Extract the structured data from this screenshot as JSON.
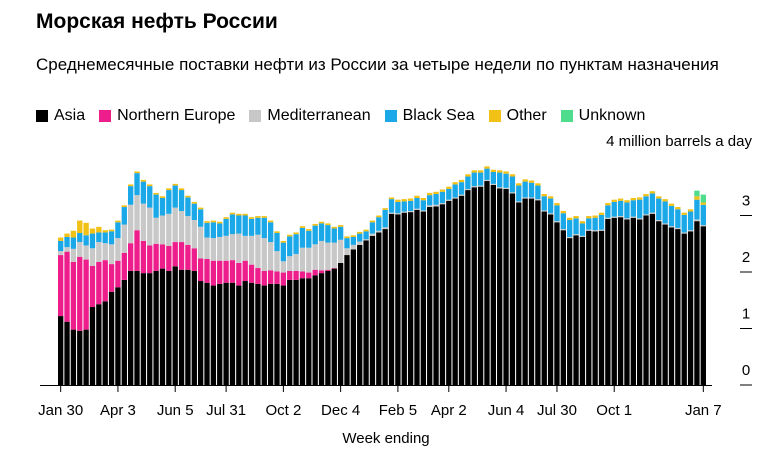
{
  "chart_data": {
    "type": "bar",
    "stacked": true,
    "title": "Морская нефть России",
    "subtitle": "Среднемесячные поставки нефти из России за четыре недели по пунктам назначения",
    "unit_label": "4 million barrels a day",
    "xlabel": "Week ending",
    "ylabel": "",
    "ylim": [
      0,
      4
    ],
    "yticks": [
      0,
      1,
      2,
      3
    ],
    "grid": false,
    "legend_position": "top-left",
    "x_tick_labels": [
      "Jan 30",
      "Apr 3",
      "Jun 5",
      "Jul 31",
      "Oct 2",
      "Dec 4",
      "Feb 5",
      "Apr 2",
      "Jun 4",
      "Jul 30",
      "Oct 1",
      "Jan 7"
    ],
    "x_tick_index": [
      0,
      9,
      18,
      26,
      35,
      44,
      53,
      61,
      70,
      78,
      87,
      101
    ],
    "series": [
      {
        "name": "Asia",
        "color": "#000000",
        "values": [
          1.22,
          1.12,
          0.98,
          0.96,
          0.98,
          1.38,
          1.43,
          1.48,
          1.65,
          1.73,
          1.86,
          2.02,
          2.02,
          1.98,
          1.98,
          2.02,
          2.06,
          2.02,
          2.1,
          2.04,
          2.04,
          2.02,
          1.84,
          1.81,
          1.76,
          1.79,
          1.81,
          1.81,
          1.76,
          1.84,
          1.81,
          1.79,
          1.76,
          1.79,
          1.79,
          1.76,
          1.86,
          1.86,
          1.89,
          1.89,
          1.94,
          1.98,
          2.02,
          2.06,
          2.16,
          2.3,
          2.4,
          2.48,
          2.56,
          2.64,
          2.7,
          2.76,
          3.03,
          3.02,
          3.05,
          3.06,
          3.1,
          3.07,
          3.15,
          3.16,
          3.2,
          3.26,
          3.3,
          3.35,
          3.45,
          3.5,
          3.51,
          3.61,
          3.54,
          3.48,
          3.47,
          3.39,
          3.23,
          3.3,
          3.3,
          3.27,
          3.07,
          3.02,
          2.88,
          2.74,
          2.6,
          2.65,
          2.62,
          2.73,
          2.72,
          2.73,
          2.94,
          2.96,
          2.97,
          2.93,
          2.96,
          2.93,
          3.0,
          3.03,
          2.9,
          2.84,
          2.79,
          2.76,
          2.68,
          2.72,
          2.9,
          2.81
        ]
      },
      {
        "name": "Northern Europe",
        "color": "#ed1e8c",
        "values": [
          1.08,
          1.24,
          1.2,
          1.31,
          1.24,
          0.73,
          0.75,
          0.73,
          0.49,
          0.47,
          0.48,
          0.49,
          0.72,
          0.57,
          0.49,
          0.48,
          0.43,
          0.44,
          0.43,
          0.49,
          0.44,
          0.4,
          0.4,
          0.42,
          0.44,
          0.41,
          0.39,
          0.4,
          0.4,
          0.36,
          0.32,
          0.28,
          0.26,
          0.24,
          0.22,
          0.23,
          0.16,
          0.16,
          0.12,
          0.1,
          0.1,
          0.05,
          0.02,
          0.01,
          0,
          0,
          0,
          0,
          0,
          0,
          0,
          0,
          0,
          0,
          0,
          0,
          0,
          0,
          0,
          0,
          0,
          0,
          0,
          0,
          0,
          0,
          0,
          0,
          0,
          0,
          0,
          0,
          0,
          0,
          0,
          0,
          0,
          0,
          0,
          0,
          0,
          0,
          0,
          0,
          0,
          0,
          0,
          0,
          0,
          0,
          0,
          0,
          0,
          0,
          0,
          0,
          0,
          0,
          0,
          0,
          0,
          0
        ]
      },
      {
        "name": "Mediterranean",
        "color": "#c8c8c8",
        "values": [
          0.07,
          0.08,
          0.23,
          0.26,
          0.25,
          0.31,
          0.35,
          0.3,
          0.35,
          0.4,
          0.5,
          0.68,
          0.62,
          0.66,
          0.67,
          0.46,
          0.51,
          0.57,
          0.61,
          0.55,
          0.51,
          0.5,
          0.56,
          0.38,
          0.4,
          0.42,
          0.44,
          0.46,
          0.52,
          0.44,
          0.51,
          0.59,
          0.58,
          0.5,
          0.36,
          0.2,
          0.26,
          0.3,
          0.42,
          0.44,
          0.45,
          0.52,
          0.48,
          0.45,
          0.41,
          0.12,
          0.08,
          0.06,
          0.02,
          0.04,
          0.03,
          0.03,
          0.02,
          0.02,
          0.02,
          0.02,
          0.02,
          0.02,
          0.03,
          0.03,
          0.02,
          0.02,
          0.02,
          0.02,
          0.02,
          0.02,
          0.02,
          0.02,
          0.02,
          0.02,
          0.02,
          0.02,
          0.02,
          0.02,
          0.02,
          0.02,
          0.02,
          0.02,
          0.02,
          0.02,
          0.02,
          0.02,
          0.02,
          0.02,
          0.02,
          0.02,
          0.02,
          0.02,
          0.02,
          0.02,
          0.02,
          0.02,
          0.02,
          0.02,
          0.02,
          0.02,
          0.02,
          0.02,
          0.02,
          0.02,
          0.03,
          0.02
        ]
      },
      {
        "name": "Black Sea",
        "color": "#1aa8e8",
        "values": [
          0.18,
          0.18,
          0.2,
          0.16,
          0.18,
          0.26,
          0.17,
          0.19,
          0.23,
          0.28,
          0.31,
          0.33,
          0.39,
          0.39,
          0.38,
          0.41,
          0.31,
          0.42,
          0.39,
          0.37,
          0.33,
          0.29,
          0.31,
          0.26,
          0.28,
          0.24,
          0.3,
          0.35,
          0.32,
          0.36,
          0.3,
          0.3,
          0.36,
          0.35,
          0.32,
          0.33,
          0.35,
          0.35,
          0.35,
          0.3,
          0.33,
          0.31,
          0.31,
          0.25,
          0.23,
          0.18,
          0.14,
          0.14,
          0.14,
          0.2,
          0.24,
          0.31,
          0.24,
          0.2,
          0.18,
          0.18,
          0.19,
          0.18,
          0.18,
          0.19,
          0.2,
          0.19,
          0.23,
          0.22,
          0.22,
          0.24,
          0.23,
          0.2,
          0.21,
          0.26,
          0.25,
          0.28,
          0.28,
          0.28,
          0.26,
          0.24,
          0.25,
          0.26,
          0.28,
          0.28,
          0.3,
          0.28,
          0.22,
          0.2,
          0.22,
          0.26,
          0.22,
          0.26,
          0.27,
          0.28,
          0.29,
          0.33,
          0.32,
          0.34,
          0.38,
          0.39,
          0.36,
          0.33,
          0.31,
          0.33,
          0.35,
          0.36
        ]
      },
      {
        "name": "Other",
        "color": "#f2c116",
        "values": [
          0.06,
          0.06,
          0.12,
          0.22,
          0.22,
          0.09,
          0.1,
          0.04,
          0.03,
          0.03,
          0.03,
          0.03,
          0.03,
          0.03,
          0.03,
          0.03,
          0.03,
          0.03,
          0.03,
          0.03,
          0.03,
          0.03,
          0.03,
          0.03,
          0.03,
          0.03,
          0.03,
          0.03,
          0.03,
          0.03,
          0.03,
          0.03,
          0.03,
          0.03,
          0.03,
          0.03,
          0.03,
          0.03,
          0.03,
          0.03,
          0.03,
          0.03,
          0.03,
          0.03,
          0.03,
          0.03,
          0.03,
          0.03,
          0.03,
          0.03,
          0.03,
          0.03,
          0.03,
          0.04,
          0.04,
          0.04,
          0.04,
          0.04,
          0.04,
          0.04,
          0.04,
          0.04,
          0.04,
          0.04,
          0.04,
          0.04,
          0.04,
          0.04,
          0.04,
          0.04,
          0.04,
          0.04,
          0.04,
          0.04,
          0.04,
          0.04,
          0.04,
          0.04,
          0.04,
          0.04,
          0.04,
          0.04,
          0.04,
          0.04,
          0.04,
          0.04,
          0.04,
          0.04,
          0.04,
          0.04,
          0.04,
          0.04,
          0.04,
          0.04,
          0.04,
          0.04,
          0.04,
          0.04,
          0.04,
          0.04,
          0.06,
          0.04
        ]
      },
      {
        "name": "Unknown",
        "color": "#4fdc8c",
        "values": [
          0,
          0,
          0,
          0,
          0,
          0,
          0,
          0,
          0,
          0,
          0,
          0,
          0,
          0,
          0,
          0,
          0,
          0,
          0,
          0,
          0,
          0,
          0,
          0,
          0,
          0,
          0,
          0,
          0,
          0,
          0,
          0,
          0,
          0,
          0,
          0,
          0,
          0,
          0,
          0,
          0,
          0,
          0,
          0,
          0,
          0,
          0,
          0,
          0,
          0,
          0,
          0,
          0,
          0,
          0,
          0,
          0,
          0,
          0,
          0,
          0,
          0,
          0,
          0,
          0,
          0,
          0,
          0,
          0,
          0,
          0,
          0,
          0,
          0,
          0,
          0,
          0,
          0,
          0,
          0,
          0,
          0,
          0,
          0,
          0,
          0,
          0,
          0,
          0,
          0,
          0,
          0,
          0,
          0,
          0,
          0,
          0,
          0,
          0,
          0,
          0.1,
          0.14
        ]
      }
    ]
  }
}
